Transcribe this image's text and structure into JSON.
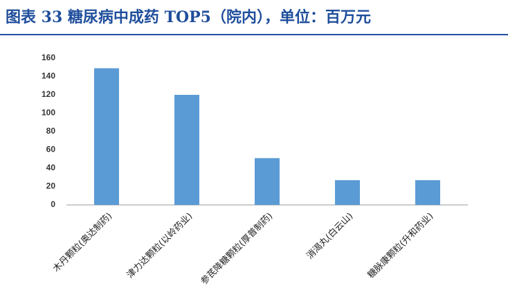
{
  "chart_data": {
    "type": "bar",
    "title": "图表 33   糖尿病中成药 TOP5（院内），单位：百万元",
    "categories": [
      "木丹颗粒(奥达制药)",
      "津力达颗粒(以岭药业)",
      "参芪降糖颗粒(厚普制药)",
      "消渴丸(白云山)",
      "糖脉康颗粒(升和药业)"
    ],
    "values": [
      149,
      120,
      51,
      27,
      27
    ],
    "color": "#5b9bd5",
    "ylim": [
      0,
      160
    ],
    "yticks": [
      0,
      20,
      40,
      60,
      80,
      100,
      120,
      140,
      160
    ],
    "grid": false
  }
}
